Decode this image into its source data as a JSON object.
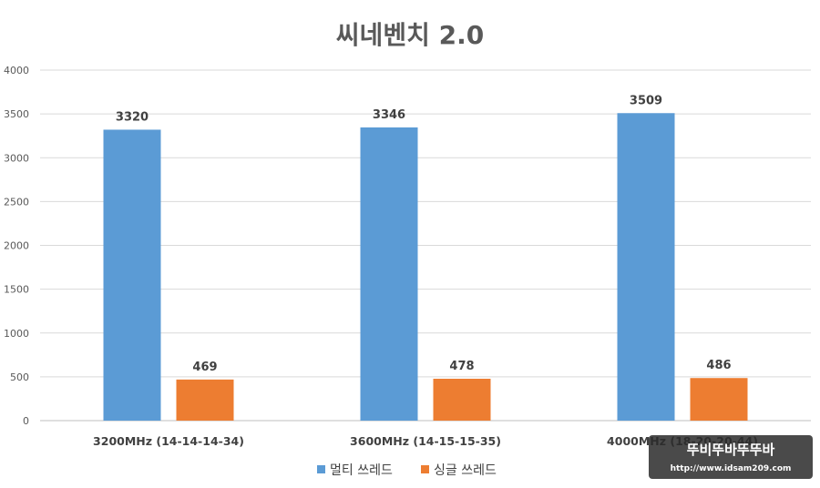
{
  "chart_data": {
    "type": "bar",
    "title": "씨네벤치 2.0",
    "xlabel": "",
    "ylabel": "",
    "ylim": [
      0,
      4000
    ],
    "yticks": [
      0,
      500,
      1000,
      1500,
      2000,
      2500,
      3000,
      3500,
      4000
    ],
    "grid": true,
    "legend_position": "bottom",
    "data_labels": true,
    "categories": [
      "3200MHz (14-14-14-34)",
      "3600MHz (14-15-15-35)",
      "4000MHz (18-20-20-44)"
    ],
    "series": [
      {
        "name": "멀티 쓰레드",
        "color": "#5b9bd5",
        "values": [
          3320,
          3346,
          3509
        ]
      },
      {
        "name": "싱글 쓰레드",
        "color": "#ed7d31",
        "values": [
          469,
          478,
          486
        ]
      }
    ]
  },
  "watermark": {
    "logo_text": "뚜비뚜바뚜뚜바",
    "url_text": "http://www.idsam209.com"
  }
}
